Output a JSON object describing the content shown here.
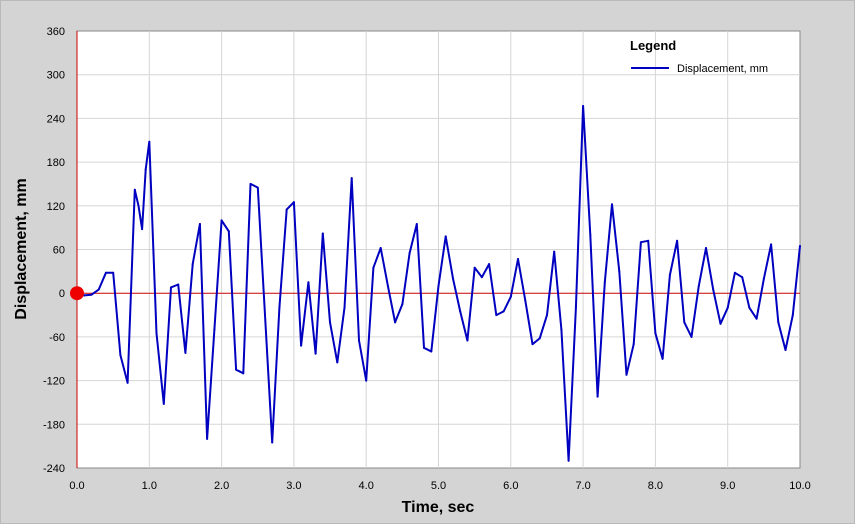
{
  "chart_data": {
    "type": "line",
    "xlabel": "Time,  sec",
    "ylabel": "Displacement,  mm",
    "xlim": [
      0,
      10
    ],
    "ylim": [
      -240,
      360
    ],
    "xticks": [
      "0.0",
      "1.0",
      "2.0",
      "3.0",
      "4.0",
      "5.0",
      "6.0",
      "7.0",
      "8.0",
      "9.0",
      "10.0"
    ],
    "yticks": [
      "360",
      "300",
      "240",
      "180",
      "120",
      "60",
      "0",
      "-60",
      "-120",
      "-180",
      "-240"
    ],
    "grid": true,
    "zero_line": true,
    "legend": {
      "title": "Legend",
      "position": "top-right"
    },
    "series": [
      {
        "name": "Displacement, mm",
        "color": "#0000c0",
        "x": [
          0,
          0.1,
          0.2,
          0.3,
          0.4,
          0.5,
          0.6,
          0.7,
          0.8,
          0.85,
          0.9,
          0.95,
          1.0,
          1.1,
          1.2,
          1.3,
          1.4,
          1.5,
          1.6,
          1.7,
          1.8,
          1.9,
          2.0,
          2.1,
          2.2,
          2.3,
          2.4,
          2.5,
          2.6,
          2.7,
          2.8,
          2.9,
          3.0,
          3.1,
          3.2,
          3.3,
          3.4,
          3.5,
          3.6,
          3.7,
          3.8,
          3.9,
          4.0,
          4.1,
          4.2,
          4.3,
          4.4,
          4.5,
          4.6,
          4.7,
          4.8,
          4.9,
          5.0,
          5.1,
          5.2,
          5.3,
          5.4,
          5.5,
          5.6,
          5.7,
          5.8,
          5.9,
          6.0,
          6.1,
          6.2,
          6.3,
          6.4,
          6.5,
          6.6,
          6.7,
          6.8,
          6.9,
          7.0,
          7.1,
          7.2,
          7.3,
          7.4,
          7.5,
          7.6,
          7.7,
          7.8,
          7.9,
          8.0,
          8.1,
          8.2,
          8.3,
          8.4,
          8.5,
          8.6,
          8.7,
          8.8,
          8.9,
          9.0,
          9.1,
          9.2,
          9.3,
          9.4,
          9.5,
          9.6,
          9.7,
          9.8,
          9.9,
          10.0
        ],
        "y": [
          0,
          -3,
          -2,
          5,
          28,
          28,
          -85,
          -123,
          142,
          120,
          88,
          170,
          208,
          -55,
          -152,
          8,
          12,
          -82,
          40,
          95,
          -200,
          -50,
          100,
          85,
          -105,
          -110,
          150,
          145,
          -30,
          -205,
          -20,
          115,
          125,
          -72,
          15,
          -83,
          82,
          -40,
          -95,
          -20,
          158,
          -65,
          -120,
          35,
          62,
          10,
          -40,
          -15,
          55,
          95,
          -75,
          -80,
          10,
          78,
          20,
          -25,
          -65,
          35,
          22,
          40,
          -30,
          -25,
          -5,
          47,
          -10,
          -70,
          -62,
          -30,
          57,
          -50,
          -230,
          -20,
          257,
          80,
          -142,
          15,
          122,
          30,
          -112,
          -70,
          70,
          72,
          -55,
          -90,
          25,
          72,
          -40,
          -60,
          10,
          62,
          5,
          -42,
          -20,
          28,
          22,
          -20,
          -35,
          20,
          67,
          -40,
          -78,
          -30,
          65
        ]
      }
    ]
  }
}
